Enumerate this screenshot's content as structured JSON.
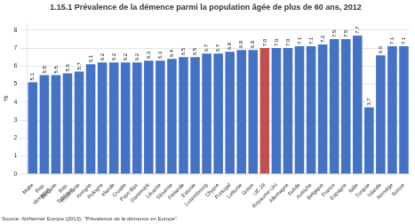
{
  "chart_data": {
    "type": "bar",
    "title": "1.15.1 Prévalence de la démence parmi la population âgée de plus de 60 ans, 2012",
    "ylabel": "%",
    "source": "Source: Alzheimer Europe (2013), \"Prévalence de la démence en Europe\".",
    "categories": [
      "Malte",
      "Rep.\nslovaque",
      "Bulgarie",
      "Rep.\nTchèque",
      "Roumanie",
      "Hongrie",
      "Pologne",
      "Irlande",
      "Croatie",
      "Pays-Bas",
      "Danemark",
      "Lituanie",
      "Slovénie",
      "Finlande",
      "Estonie",
      "Luxembourg",
      "Chypre",
      "Portugal",
      "Lettonie",
      "Grèce",
      "UE-28",
      "Royaume-Uni",
      "Allemagne",
      "Suède",
      "Autriche",
      "Belgique",
      "France",
      "Espagne",
      "Italie",
      "Turquie",
      "Islande",
      "Norvège",
      "Suisse"
    ],
    "values": [
      5.1,
      5.5,
      5.5,
      5.6,
      5.7,
      6.1,
      6.2,
      6.2,
      6.2,
      6.2,
      6.3,
      6.3,
      6.4,
      6.5,
      6.5,
      6.7,
      6.7,
      6.8,
      6.9,
      6.9,
      7.0,
      7.0,
      7.0,
      7.1,
      7.1,
      7.2,
      7.5,
      7.5,
      7.7,
      3.7,
      6.6,
      7.1,
      7.1
    ],
    "value_labels": [
      "5.1",
      "5.5",
      "5.5",
      "5.6",
      "5.7",
      "6.1",
      "6.2",
      "6.2",
      "6.2",
      "6.2",
      "6.3",
      "6.3",
      "6.4",
      "6.5",
      "6.5",
      "6.7",
      "6.7",
      "6.8",
      "6.9",
      "6.9",
      "7.0",
      "7.0",
      "7.0",
      "7.1",
      "7.1",
      "7.2",
      "7.5",
      "7.5",
      "7.7",
      "3.7",
      "6.6",
      "7.1",
      "7.1"
    ],
    "colors": [
      "#4472C4",
      "#4472C4",
      "#4472C4",
      "#4472C4",
      "#4472C4",
      "#4472C4",
      "#4472C4",
      "#4472C4",
      "#4472C4",
      "#4472C4",
      "#4472C4",
      "#4472C4",
      "#4472C4",
      "#4472C4",
      "#4472C4",
      "#4472C4",
      "#4472C4",
      "#4472C4",
      "#4472C4",
      "#4472C4",
      "#C0504D",
      "#4472C4",
      "#4472C4",
      "#4472C4",
      "#4472C4",
      "#4472C4",
      "#4472C4",
      "#4472C4",
      "#4472C4",
      "#4472C4",
      "#4472C4",
      "#4472C4",
      "#4472C4"
    ],
    "ylim": [
      0,
      8.4
    ],
    "yticks": [
      0,
      1,
      2,
      3,
      4,
      5,
      6,
      7,
      8
    ],
    "grid": true,
    "data_labels": true
  }
}
